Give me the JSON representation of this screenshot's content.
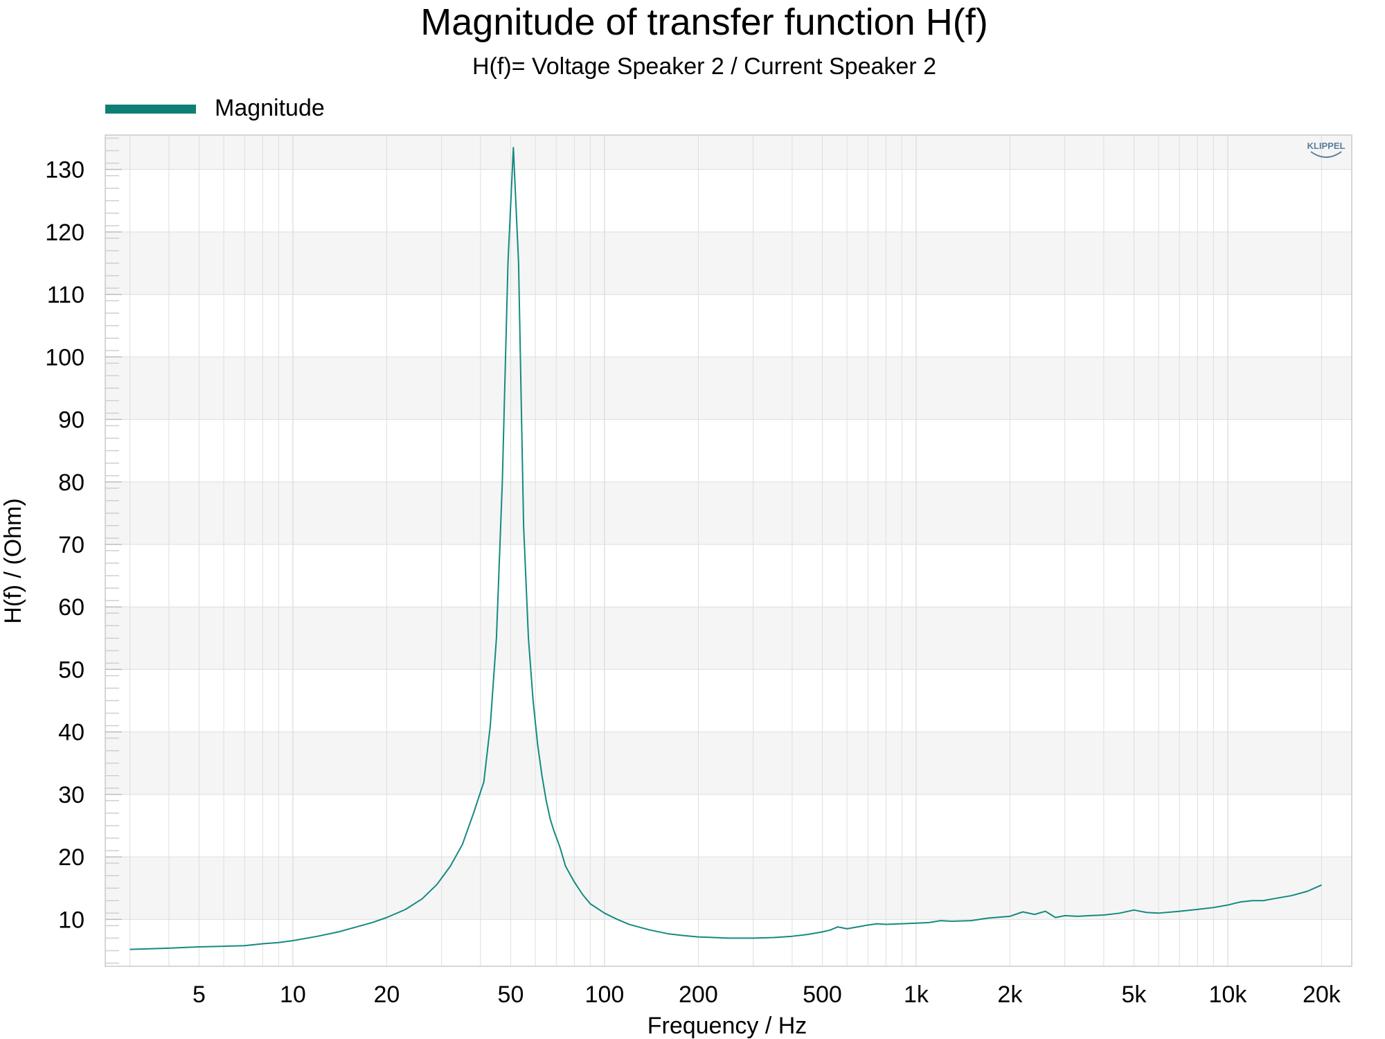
{
  "colors": {
    "series": "#148a80",
    "band": "#f5f5f5",
    "grid": "#dedede",
    "frame": "#c8c8c8",
    "legend_bar": "#0f7f75",
    "logo": "#5a7f9a"
  },
  "logo": {
    "text": "KLIPPEL"
  },
  "chart_data": {
    "type": "line",
    "title": "Magnitude of transfer function H(f)",
    "subtitle": "H(f)= Voltage Speaker 2 / Current Speaker 2",
    "xlabel": "Frequency / Hz",
    "ylabel": "H(f) / (Ohm)",
    "x_scale": "log",
    "xlim": [
      2.5,
      25000
    ],
    "ylim": [
      2.5,
      135.5
    ],
    "grid": true,
    "legend_position": "top-left",
    "x_ticks": [
      5,
      10,
      20,
      50,
      100,
      200,
      500,
      1000,
      2000,
      5000,
      10000,
      20000
    ],
    "x_tick_labels": [
      "5",
      "10",
      "20",
      "50",
      "100",
      "200",
      "500",
      "1k",
      "2k",
      "5k",
      "10k",
      "20k"
    ],
    "y_ticks": [
      10,
      20,
      30,
      40,
      50,
      60,
      70,
      80,
      90,
      100,
      110,
      120,
      130
    ],
    "y_tick_labels": [
      "10",
      "20",
      "30",
      "40",
      "50",
      "60",
      "70",
      "80",
      "90",
      "100",
      "110",
      "120",
      "130"
    ],
    "series": [
      {
        "name": "Magnitude",
        "x": [
          3,
          4,
          5,
          6,
          7,
          8,
          9,
          10,
          12,
          14,
          16,
          18,
          20,
          23,
          26,
          29,
          32,
          35,
          38,
          41,
          43,
          45,
          47,
          49,
          51,
          53,
          55,
          57,
          59,
          61,
          63,
          65,
          67,
          69,
          72,
          75,
          80,
          85,
          90,
          100,
          110,
          120,
          140,
          160,
          180,
          200,
          250,
          300,
          350,
          400,
          450,
          500,
          530,
          560,
          600,
          650,
          700,
          750,
          800,
          900,
          1000,
          1100,
          1200,
          1300,
          1500,
          1700,
          2000,
          2200,
          2400,
          2600,
          2800,
          3000,
          3300,
          3600,
          4000,
          4500,
          5000,
          5500,
          6000,
          7000,
          8000,
          9000,
          10000,
          11000,
          12000,
          13000,
          14000,
          16000,
          18000,
          20000
        ],
        "y": [
          5.2,
          5.4,
          5.6,
          5.7,
          5.8,
          6.1,
          6.3,
          6.6,
          7.3,
          8.0,
          8.8,
          9.5,
          10.3,
          11.6,
          13.3,
          15.6,
          18.5,
          22.0,
          27.0,
          32.0,
          41.0,
          55.0,
          80.0,
          115.0,
          133.5,
          115.0,
          73.0,
          55.0,
          45.0,
          38.0,
          33.0,
          29.0,
          26.0,
          24.0,
          21.5,
          18.5,
          16.0,
          14.0,
          12.5,
          11.0,
          10.0,
          9.2,
          8.3,
          7.7,
          7.4,
          7.2,
          7.0,
          7.0,
          7.1,
          7.3,
          7.6,
          8.0,
          8.3,
          8.8,
          8.5,
          8.8,
          9.1,
          9.3,
          9.2,
          9.3,
          9.4,
          9.5,
          9.8,
          9.7,
          9.8,
          10.2,
          10.5,
          11.2,
          10.8,
          11.3,
          10.3,
          10.6,
          10.5,
          10.6,
          10.7,
          11.0,
          11.5,
          11.1,
          11.0,
          11.3,
          11.6,
          11.9,
          12.3,
          12.8,
          13.0,
          13.0,
          13.3,
          13.8,
          14.5,
          15.5
        ]
      }
    ]
  }
}
